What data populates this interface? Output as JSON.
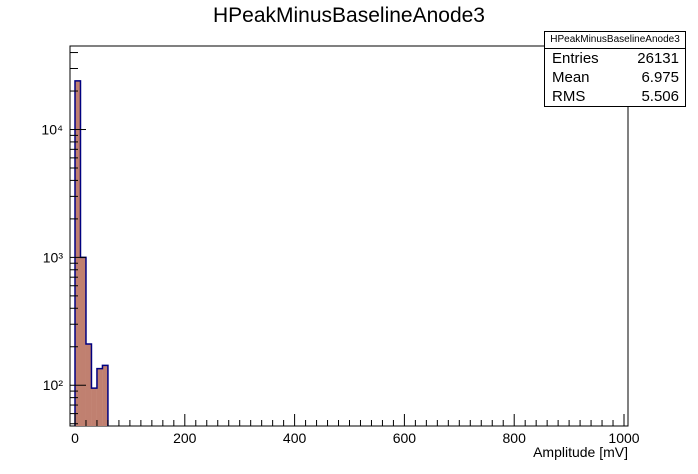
{
  "chart_data": {
    "type": "bar",
    "title": "HPeakMinusBaselineAnode3",
    "xlabel": "Amplitude [mV]",
    "ylabel": "",
    "xlim": [
      0,
      1000
    ],
    "ylim": [
      48,
      45000
    ],
    "yscale": "log",
    "grid": false,
    "bin_width": 10,
    "bins": [
      {
        "x0": 0,
        "x1": 10,
        "value": 24000
      },
      {
        "x0": 10,
        "x1": 20,
        "value": 1000
      },
      {
        "x0": 20,
        "x1": 30,
        "value": 210
      },
      {
        "x0": 30,
        "x1": 40,
        "value": 95
      },
      {
        "x0": 40,
        "x1": 50,
        "value": 135
      },
      {
        "x0": 50,
        "x1": 60,
        "value": 143
      }
    ],
    "x_tick_labels": [
      "0",
      "200",
      "400",
      "600",
      "800",
      "1000"
    ],
    "y_tick_labels": [
      "10²",
      "10³",
      "10⁴"
    ],
    "fill_color": "#c08070",
    "line_color": "#000080"
  },
  "stats": {
    "name": "HPeakMinusBaselineAnode3",
    "rows": [
      {
        "label": "Entries",
        "value": "26131"
      },
      {
        "label": "Mean",
        "value": "6.975"
      },
      {
        "label": "RMS",
        "value": "5.506"
      }
    ]
  }
}
